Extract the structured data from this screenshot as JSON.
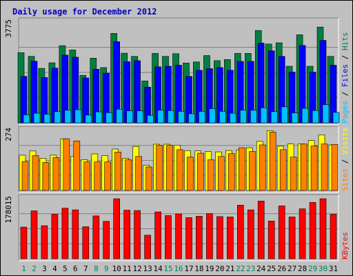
{
  "chart_data": {
    "type": "bar",
    "title": "Daily usage for December 2012",
    "categories": [
      "1",
      "2",
      "3",
      "4",
      "5",
      "6",
      "7",
      "8",
      "9",
      "10",
      "11",
      "12",
      "13",
      "14",
      "15",
      "16",
      "17",
      "18",
      "19",
      "20",
      "21",
      "22",
      "23",
      "24",
      "25",
      "26",
      "27",
      "28",
      "29",
      "30",
      "31"
    ],
    "weekend_days": [
      1,
      2,
      8,
      9,
      15,
      16,
      22,
      23,
      29,
      30
    ],
    "panels": [
      {
        "id": "hits-panel",
        "ymax": 3775,
        "ytick_label": "3775",
        "legend": [
          {
            "text": "Pages",
            "color": "#00c0ff"
          },
          {
            "text": " / ",
            "color": "#000000"
          },
          {
            "text": "Files",
            "color": "#0000ff"
          },
          {
            "text": " / ",
            "color": "#000000"
          },
          {
            "text": "Hits",
            "color": "#008040"
          }
        ],
        "series": [
          {
            "name": "Hits",
            "color": "#008040",
            "values": [
              2630,
              2490,
              2040,
              2250,
              2890,
              2730,
              1780,
              2420,
              2070,
              3350,
              2610,
              2490,
              1570,
              2600,
              2490,
              2590,
              2240,
              2280,
              2520,
              2330,
              2370,
              2600,
              2600,
              3460,
              2950,
              3000,
              2120,
              3300,
              2120,
              3590,
              2490
            ]
          },
          {
            "name": "Files",
            "color": "#0000ff",
            "values": [
              1740,
              2310,
              1700,
              2050,
              2540,
              2460,
              1680,
              2010,
              1860,
              3040,
              2290,
              2330,
              1340,
              2100,
              2120,
              2160,
              1740,
              1970,
              2030,
              2070,
              1970,
              2300,
              2300,
              2990,
              2700,
              2490,
              1900,
              2900,
              1900,
              3090,
              2160
            ]
          },
          {
            "name": "Pages",
            "color": "#00c0ff",
            "values": [
              300,
              360,
              320,
              420,
              470,
              490,
              290,
              410,
              380,
              510,
              450,
              450,
              280,
              470,
              460,
              430,
              340,
              430,
              530,
              430,
              360,
              470,
              470,
              560,
              420,
              600,
              370,
              540,
              460,
              680,
              390
            ]
          }
        ]
      },
      {
        "id": "visits-panel",
        "ymax": 274,
        "ytick_label": "274",
        "legend": [
          {
            "text": "Sites",
            "color": "#ff8000"
          },
          {
            "text": " / ",
            "color": "#000000"
          },
          {
            "text": "Visits",
            "color": "#ffff00"
          }
        ],
        "series": [
          {
            "name": "Visits",
            "color": "#ffff00",
            "values": [
              161,
              180,
              147,
              161,
              236,
              155,
              140,
              167,
              159,
              189,
              147,
              201,
              115,
              211,
              211,
              207,
              182,
              181,
              178,
              176,
              182,
              184,
              195,
              224,
              273,
              202,
              212,
              212,
              228,
              254,
              208
            ]
          },
          {
            "name": "Sites",
            "color": "#ff8000",
            "values": [
              132,
              159,
              128,
              150,
              236,
              226,
              130,
              130,
              130,
              175,
              140,
              155,
              107,
              206,
              206,
              186,
              152,
              170,
              140,
              155,
              168,
              195,
              178,
              208,
              266,
              186,
              152,
              212,
              203,
              212,
              210
            ]
          }
        ]
      },
      {
        "id": "kbytes-panel",
        "ymax": 178015,
        "ytick_label": "178015",
        "legend": [
          {
            "text": "KBytes",
            "color": "#ff0000"
          }
        ],
        "series": [
          {
            "name": "KBytes",
            "color": "#ff0000",
            "values": [
              94000,
              142000,
              98000,
              132000,
              150000,
              145000,
              95000,
              127000,
              111000,
              178000,
              144000,
              143000,
              70000,
              139000,
              128000,
              133000,
              122000,
              126000,
              134000,
              125000,
              124000,
              159000,
              145000,
              171000,
              112000,
              157000,
              124000,
              148000,
              167000,
              178000,
              132000
            ]
          }
        ]
      }
    ]
  }
}
